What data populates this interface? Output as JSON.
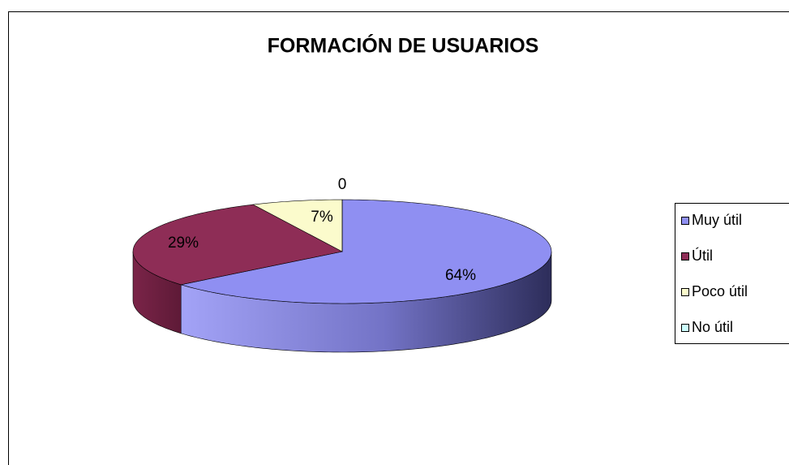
{
  "chart_data": {
    "type": "pie3d",
    "title": "FORMACIÓN DE USUARIOS",
    "categories": [
      "Muy útil",
      "Útil",
      "Poco útil",
      "No útil"
    ],
    "values": [
      64,
      29,
      7,
      0
    ],
    "value_labels": [
      "64%",
      "29%",
      "7%",
      "0"
    ],
    "colors": [
      "#8f8ff2",
      "#8e2d56",
      "#fbfbcc",
      "#ccffff"
    ],
    "legend": "right"
  }
}
